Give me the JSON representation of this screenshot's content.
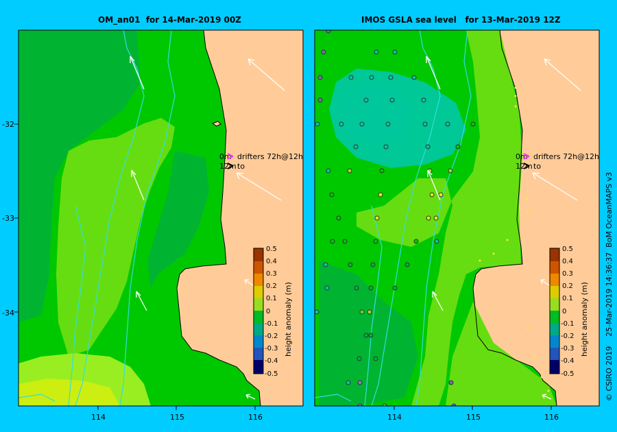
{
  "panels": [
    {
      "title": "OM_an01  for 14-Mar-2019 00Z",
      "x_ticks": [
        "114",
        "115",
        "116"
      ],
      "y_ticks": [
        "-32",
        "-33",
        "-34"
      ],
      "drifters": {
        "line1": "0m",
        "line1b": "drifters 72h@12h",
        "line2": "12m",
        "line2b": "to"
      },
      "colorbar": {
        "label": "height anomaly (m)",
        "ticks": [
          "0.5",
          "0.4",
          "0.3",
          "0.2",
          "0.1",
          "0",
          "-0.1",
          "-0.2",
          "-0.3",
          "-0.4",
          "-0.5"
        ]
      }
    },
    {
      "title": "IMOS GSLA sea level   for 13-Mar-2019 12Z",
      "x_ticks": [
        "114",
        "115",
        "116"
      ],
      "drifters": {
        "line1": "0m",
        "line1b": "drifters 72h@12h",
        "line2": "12m",
        "line2b": "to"
      },
      "colorbar": {
        "label": "height anomaly (m)",
        "ticks": [
          "0.5",
          "0.4",
          "0.3",
          "0.2",
          "0.1",
          "0",
          "-0.1",
          "-0.2",
          "-0.3",
          "-0.4",
          "-0.5"
        ]
      }
    }
  ],
  "credit": "© CSIRO 2019    25-Mar-2019 14:36:37  BoM OceanMAPS v3",
  "colors": {
    "background": "#00ccff",
    "land": "#ffcc99",
    "deep_green": "#00b432",
    "mid_green": "#00c800",
    "light_green": "#66dd11",
    "lime": "#99ee22",
    "yellow": "#ccee11",
    "teal": "#00c8a0",
    "contour": "#33dddd",
    "drifter_surface": "#ff33ff"
  }
}
